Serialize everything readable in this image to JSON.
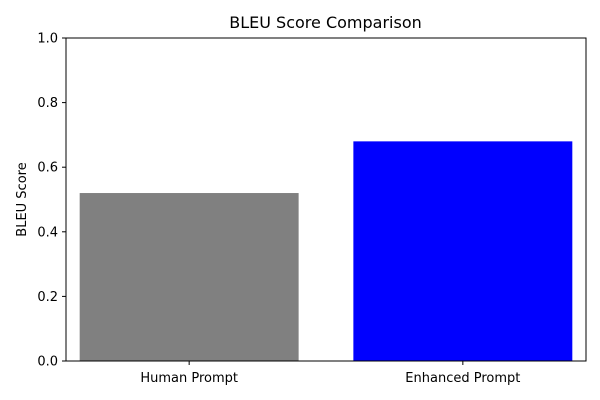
{
  "chart_data": {
    "type": "bar",
    "title": "BLEU Score Comparison",
    "xlabel": "",
    "ylabel": "BLEU Score",
    "categories": [
      "Human Prompt",
      "Enhanced Prompt"
    ],
    "values": [
      0.52,
      0.68
    ],
    "colors": [
      "#808080",
      "#0000ff"
    ],
    "ylim": [
      0,
      1.0
    ],
    "yticks": [
      "0.0",
      "0.2",
      "0.4",
      "0.6",
      "0.8",
      "1.0"
    ],
    "grid": false,
    "legend": "none"
  }
}
